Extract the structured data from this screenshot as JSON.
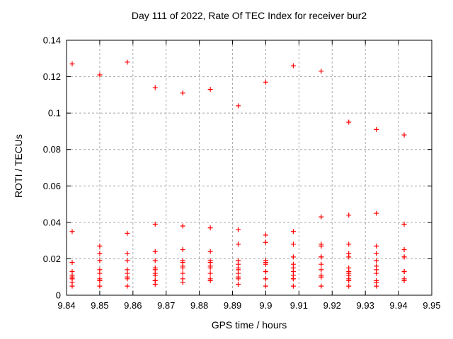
{
  "colors": {
    "marker": "#ff0000",
    "grid": "#a8a8a8",
    "axis": "#000000",
    "background": "#ffffff"
  },
  "chart_data": {
    "type": "scatter",
    "title": "Day 111 of 2022, Rate Of TEC Index for receiver bur2",
    "xlabel": "GPS time / hours",
    "ylabel": "ROTI / TECUs",
    "xlim": [
      9.84,
      9.95
    ],
    "ylim": [
      0,
      0.14
    ],
    "x_ticks": [
      9.84,
      9.85,
      9.86,
      9.87,
      9.88,
      9.89,
      9.9,
      9.91,
      9.92,
      9.93,
      9.94,
      9.95
    ],
    "x_tick_labels": [
      "9.84",
      "9.85",
      "9.86",
      "9.87",
      "9.88",
      "9.89",
      "9.9",
      "9.91",
      "9.92",
      "9.93",
      "9.94",
      "9.95"
    ],
    "y_ticks": [
      0,
      0.02,
      0.04,
      0.06,
      0.08,
      0.1,
      0.12,
      0.14
    ],
    "y_tick_labels": [
      "0",
      "0.02",
      "0.04",
      "0.06",
      "0.08",
      "0.1",
      "0.12",
      "0.14"
    ],
    "grid": true,
    "legend": "none",
    "marker": "plus",
    "series": [
      {
        "name": "ROTI",
        "points": [
          [
            9.8417,
            0.127
          ],
          [
            9.8417,
            0.035
          ],
          [
            9.8417,
            0.018
          ],
          [
            9.8417,
            0.013
          ],
          [
            9.8417,
            0.011
          ],
          [
            9.8417,
            0.01
          ],
          [
            9.8417,
            0.009
          ],
          [
            9.8417,
            0.009
          ],
          [
            9.8417,
            0.007
          ],
          [
            9.8417,
            0.005
          ],
          [
            9.85,
            0.121
          ],
          [
            9.85,
            0.027
          ],
          [
            9.85,
            0.023
          ],
          [
            9.85,
            0.019
          ],
          [
            9.85,
            0.014
          ],
          [
            9.85,
            0.012
          ],
          [
            9.85,
            0.009
          ],
          [
            9.85,
            0.008
          ],
          [
            9.85,
            0.008
          ],
          [
            9.85,
            0.005
          ],
          [
            9.8583,
            0.128
          ],
          [
            9.8583,
            0.034
          ],
          [
            9.8583,
            0.023
          ],
          [
            9.8583,
            0.019
          ],
          [
            9.8583,
            0.014
          ],
          [
            9.8583,
            0.012
          ],
          [
            9.8583,
            0.01
          ],
          [
            9.8583,
            0.009
          ],
          [
            9.8583,
            0.005
          ],
          [
            9.8667,
            0.114
          ],
          [
            9.8667,
            0.039
          ],
          [
            9.8667,
            0.024
          ],
          [
            9.8667,
            0.019
          ],
          [
            9.8667,
            0.015
          ],
          [
            9.8667,
            0.014
          ],
          [
            9.8667,
            0.012
          ],
          [
            9.8667,
            0.011
          ],
          [
            9.8667,
            0.008
          ],
          [
            9.8667,
            0.008
          ],
          [
            9.8667,
            0.006
          ],
          [
            9.875,
            0.111
          ],
          [
            9.875,
            0.038
          ],
          [
            9.875,
            0.025
          ],
          [
            9.875,
            0.019
          ],
          [
            9.875,
            0.018
          ],
          [
            9.875,
            0.016
          ],
          [
            9.875,
            0.015
          ],
          [
            9.875,
            0.012
          ],
          [
            9.875,
            0.009
          ],
          [
            9.875,
            0.007
          ],
          [
            9.8833,
            0.113
          ],
          [
            9.8833,
            0.037
          ],
          [
            9.8833,
            0.024
          ],
          [
            9.8833,
            0.019
          ],
          [
            9.8833,
            0.018
          ],
          [
            9.8833,
            0.016
          ],
          [
            9.8833,
            0.015
          ],
          [
            9.8833,
            0.012
          ],
          [
            9.8833,
            0.009
          ],
          [
            9.8833,
            0.008
          ],
          [
            9.8917,
            0.104
          ],
          [
            9.8917,
            0.036
          ],
          [
            9.8917,
            0.028
          ],
          [
            9.8917,
            0.019
          ],
          [
            9.8917,
            0.017
          ],
          [
            9.8917,
            0.015
          ],
          [
            9.8917,
            0.014
          ],
          [
            9.8917,
            0.012
          ],
          [
            9.8917,
            0.01
          ],
          [
            9.8917,
            0.009
          ],
          [
            9.8917,
            0.006
          ],
          [
            9.9,
            0.117
          ],
          [
            9.9,
            0.033
          ],
          [
            9.9,
            0.029
          ],
          [
            9.9,
            0.019
          ],
          [
            9.9,
            0.018
          ],
          [
            9.9,
            0.017
          ],
          [
            9.9,
            0.013
          ],
          [
            9.9,
            0.013
          ],
          [
            9.9,
            0.009
          ],
          [
            9.9,
            0.009
          ],
          [
            9.9,
            0.005
          ],
          [
            9.9083,
            0.126
          ],
          [
            9.9083,
            0.035
          ],
          [
            9.9083,
            0.028
          ],
          [
            9.9083,
            0.021
          ],
          [
            9.9083,
            0.017
          ],
          [
            9.9083,
            0.015
          ],
          [
            9.9083,
            0.013
          ],
          [
            9.9083,
            0.011
          ],
          [
            9.9083,
            0.009
          ],
          [
            9.9083,
            0.009
          ],
          [
            9.9083,
            0.005
          ],
          [
            9.9167,
            0.123
          ],
          [
            9.9167,
            0.043
          ],
          [
            9.9167,
            0.028
          ],
          [
            9.9167,
            0.027
          ],
          [
            9.9167,
            0.021
          ],
          [
            9.9167,
            0.021
          ],
          [
            9.9167,
            0.017
          ],
          [
            9.9167,
            0.014
          ],
          [
            9.9167,
            0.011
          ],
          [
            9.9167,
            0.01
          ],
          [
            9.9167,
            0.005
          ],
          [
            9.925,
            0.095
          ],
          [
            9.925,
            0.044
          ],
          [
            9.925,
            0.028
          ],
          [
            9.925,
            0.023
          ],
          [
            9.925,
            0.021
          ],
          [
            9.925,
            0.015
          ],
          [
            9.925,
            0.013
          ],
          [
            9.925,
            0.012
          ],
          [
            9.925,
            0.011
          ],
          [
            9.925,
            0.009
          ],
          [
            9.925,
            0.008
          ],
          [
            9.925,
            0.005
          ],
          [
            9.9333,
            0.091
          ],
          [
            9.9333,
            0.045
          ],
          [
            9.9333,
            0.027
          ],
          [
            9.9333,
            0.023
          ],
          [
            9.9333,
            0.019
          ],
          [
            9.9333,
            0.016
          ],
          [
            9.9333,
            0.014
          ],
          [
            9.9333,
            0.012
          ],
          [
            9.9333,
            0.008
          ],
          [
            9.9333,
            0.007
          ],
          [
            9.9333,
            0.005
          ],
          [
            9.9417,
            0.088
          ],
          [
            9.9417,
            0.039
          ],
          [
            9.9417,
            0.025
          ],
          [
            9.9417,
            0.021
          ],
          [
            9.9417,
            0.021
          ],
          [
            9.9417,
            0.013
          ],
          [
            9.9417,
            0.013
          ],
          [
            9.9417,
            0.009
          ],
          [
            9.9417,
            0.008
          ]
        ]
      }
    ]
  }
}
